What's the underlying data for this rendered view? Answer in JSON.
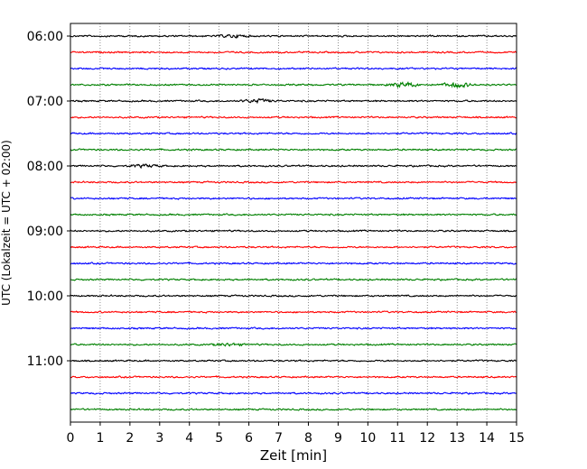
{
  "chart_data": {
    "type": "line",
    "title": "",
    "xlabel": "Zeit  [min]",
    "ylabel": "UTC (Lokalzeit = UTC + 02:00)",
    "xlim": [
      0,
      15
    ],
    "x_ticks": [
      "0",
      "1",
      "2",
      "3",
      "4",
      "5",
      "6",
      "7",
      "8",
      "9",
      "10",
      "11",
      "12",
      "13",
      "14",
      "15"
    ],
    "y_tick_labels": [
      "06:00",
      "07:00",
      "08:00",
      "09:00",
      "10:00",
      "11:00"
    ],
    "trace_interval_minutes": 15,
    "trace_start": "06:00",
    "trace_count": 24,
    "trace_colors": [
      "#000000",
      "#ff0000",
      "#0000ff",
      "#008000"
    ],
    "grid": "vertical dotted",
    "legend": "none",
    "notable_events": [
      {
        "trace": "06:00",
        "x_min": 5.5,
        "note": "small burst"
      },
      {
        "trace": "06:45",
        "x_min": 11.2,
        "note": "strong burst"
      },
      {
        "trace": "06:45",
        "x_min": 13.0,
        "note": "strong burst"
      },
      {
        "trace": "07:00",
        "x_min": 6.3,
        "note": "burst"
      },
      {
        "trace": "08:00",
        "x_min": 2.5,
        "note": "small burst"
      },
      {
        "trace": "10:45",
        "x_min": 5.3,
        "note": "small burst"
      }
    ]
  }
}
